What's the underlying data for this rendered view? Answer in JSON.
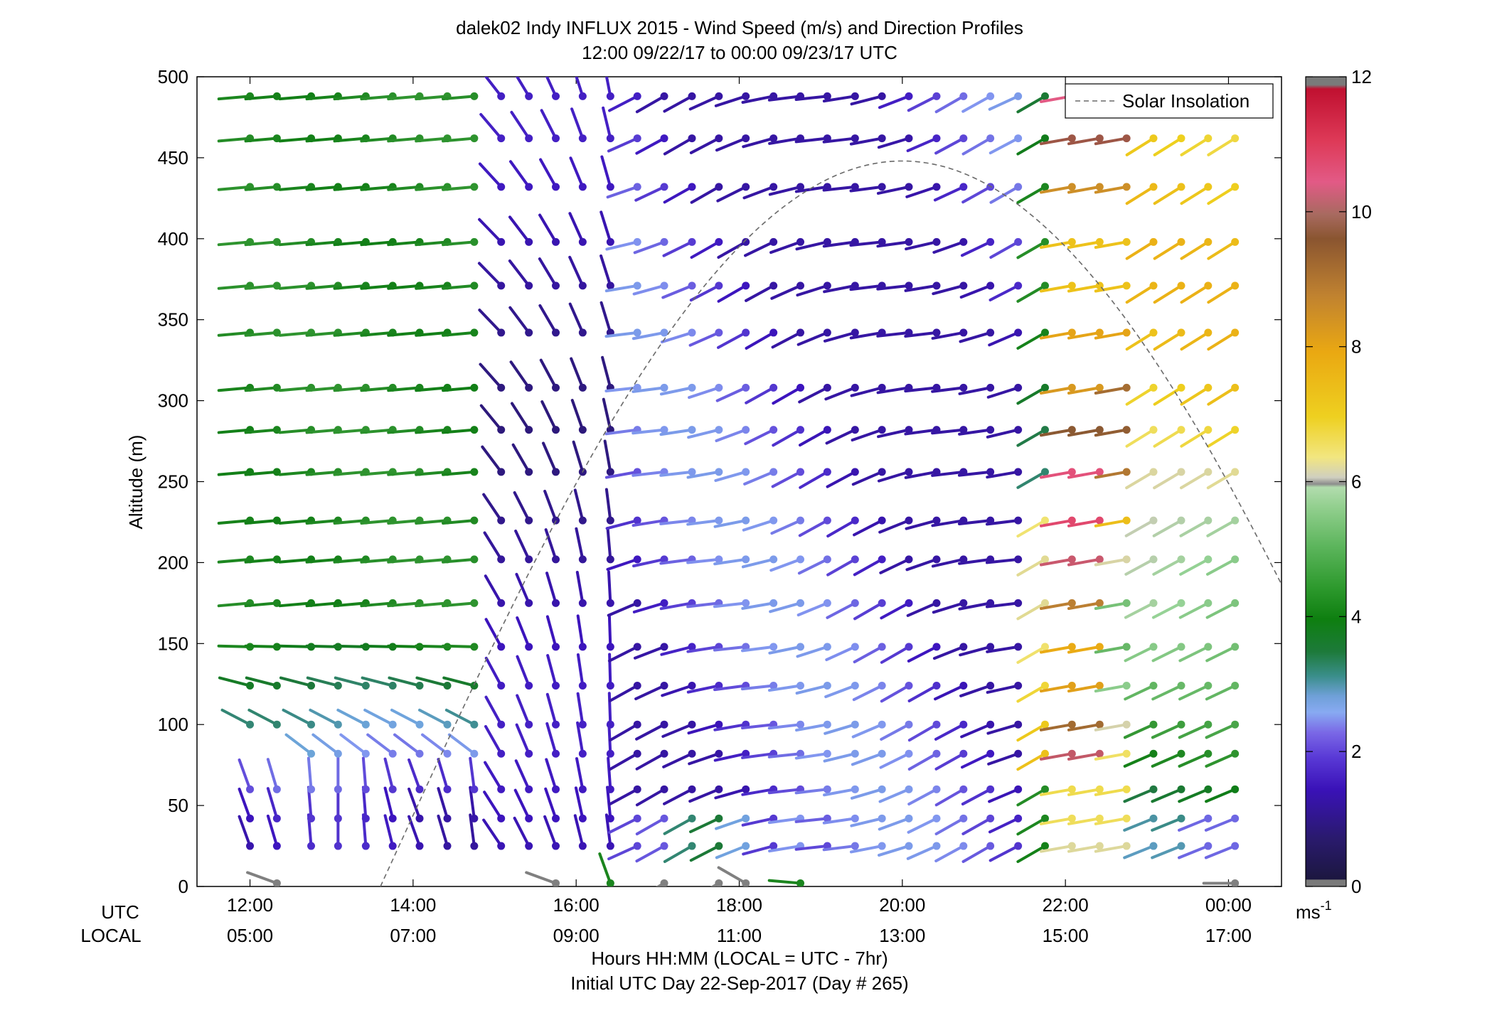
{
  "chart_data": {
    "type": "wind-barb-profile",
    "title": "dalek02 Indy INFLUX 2015 - Wind Speed (m/s) and Direction Profiles",
    "subtitle": "12:00 09/22/17 to 00:00 09/23/17  UTC",
    "ylabel": "Altitude (m)",
    "xlabel": "Hours HH:MM  (LOCAL = UTC - 7hr)",
    "xlabel2": "Initial UTC Day 22-Sep-2017 (Day # 265)",
    "x_row_labels": {
      "utc": "UTC",
      "local": "LOCAL"
    },
    "x_ticks_utc": [
      "12:00",
      "14:00",
      "16:00",
      "18:00",
      "20:00",
      "22:00",
      "00:00"
    ],
    "x_ticks_local": [
      "05:00",
      "07:00",
      "09:00",
      "11:00",
      "13:00",
      "15:00",
      "17:00"
    ],
    "x_range_hours": [
      11.35,
      24.65
    ],
    "y_ticks": [
      0,
      50,
      100,
      150,
      200,
      250,
      300,
      350,
      400,
      450,
      500
    ],
    "ylim": [
      0,
      500
    ],
    "legend": {
      "label": "Solar Insolation",
      "position": "top-right",
      "style": "dashed"
    },
    "colorbar": {
      "label": "ms",
      "label_exponent": "-1",
      "ticks": [
        0,
        2,
        4,
        6,
        8,
        10,
        12
      ],
      "range": [
        0,
        12
      ]
    },
    "solar_insolation": {
      "start_hour": 13.6,
      "peak_hour": 20.0,
      "peak_altitude": 448,
      "end_hour": 24.65,
      "end_altitude": 186
    },
    "altitudes": [
      25,
      42,
      60,
      82,
      100,
      124,
      148,
      175,
      202,
      226,
      256,
      282,
      308,
      342,
      371,
      398,
      432,
      462,
      488
    ],
    "times_hours": [
      12.0,
      12.33,
      12.75,
      13.08,
      13.42,
      13.75,
      14.08,
      14.42,
      14.75,
      15.08,
      15.42,
      15.75,
      16.08,
      16.42,
      16.75,
      17.08,
      17.42,
      17.75,
      18.08,
      18.42,
      18.75,
      19.08,
      19.42,
      19.75,
      20.08,
      20.42,
      20.75,
      21.08,
      21.42,
      21.75,
      22.08,
      22.42,
      22.75,
      23.08,
      23.42,
      23.75,
      24.08
    ],
    "surface_obs": [
      {
        "t": 12.33,
        "dir": 290,
        "spd": 0.2
      },
      {
        "t": 15.75,
        "dir": 290,
        "spd": 0.2
      },
      {
        "t": 16.42,
        "dir": 340,
        "spd": 3.8
      },
      {
        "t": 17.08,
        "dir": 240,
        "spd": 0.2
      },
      {
        "t": 17.75,
        "dir": 240,
        "spd": 0.2
      },
      {
        "t": 18.08,
        "dir": 300,
        "spd": 0.2
      },
      {
        "t": 18.75,
        "dir": 275,
        "spd": 3.8
      },
      {
        "t": 24.08,
        "dir": 270,
        "spd": 0.2
      }
    ]
  }
}
